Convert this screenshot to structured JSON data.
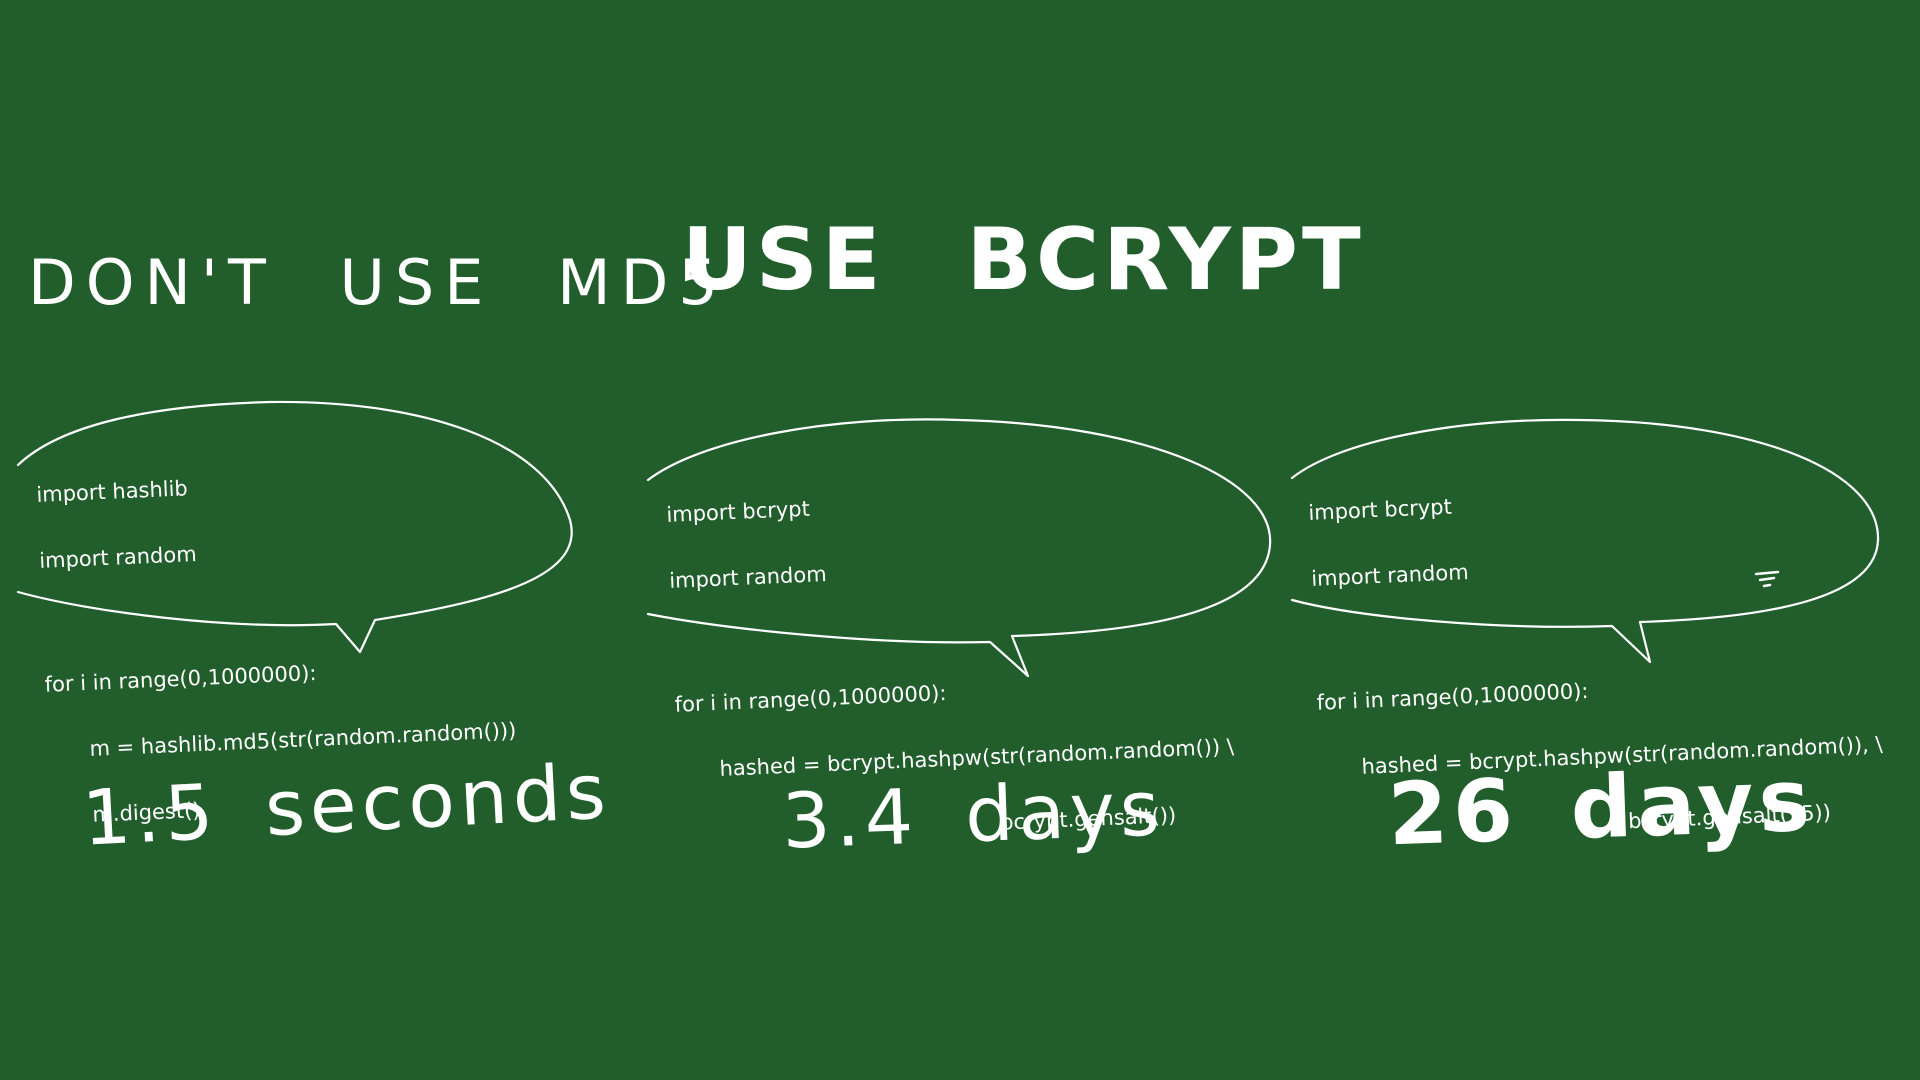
{
  "headings": {
    "left": "DON'T USE MD5",
    "right": "USE BCRYPT"
  },
  "bubbles": [
    {
      "lines": [
        "import hashlib",
        "import random",
        "for i in range(0,1000000):",
        "m = hashlib.md5(str(random.random()))",
        "m.digest()"
      ],
      "result": "1.5 seconds"
    },
    {
      "lines": [
        "import bcrypt",
        "import random",
        "for i in range(0,1000000):",
        "hashed = bcrypt.hashpw(str(random.random()) \\",
        "bcrypt.gensalt())"
      ],
      "result": "3.4 days"
    },
    {
      "lines": [
        "import bcrypt",
        "import random",
        "for i in range(0,1000000):",
        "hashed = bcrypt.hashpw(str(random.random()), \\",
        "bcrypt.gensalt(15))"
      ],
      "result": "26 days"
    }
  ],
  "colors": {
    "chalkboard": "#215e2c",
    "chalk": "#ffffff"
  }
}
